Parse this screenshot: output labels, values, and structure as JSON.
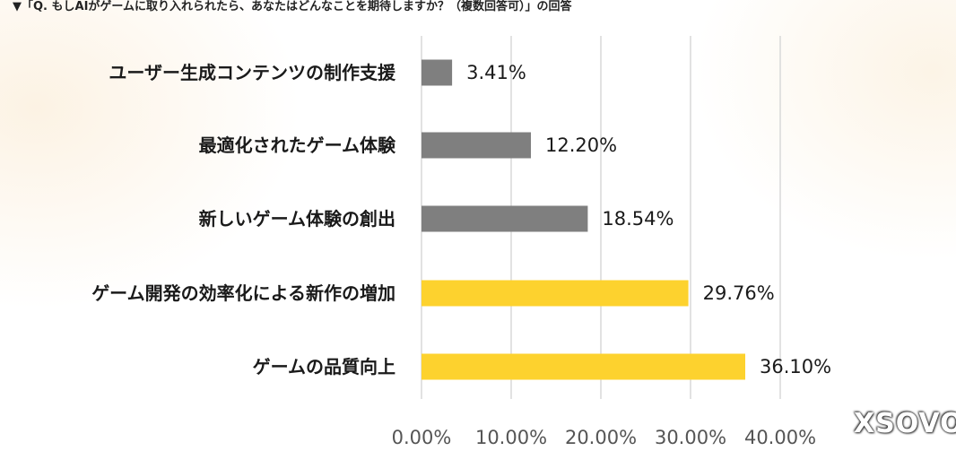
{
  "title": "▼「Q. もしAIがゲームに取り入れられたら、あなたはどんなことを期待しますか？（複数回答可）」の回答",
  "watermark": "XSOVO",
  "colors": {
    "gray": "#7f7f7f",
    "yellow": "#fdd22e",
    "grid": "#d9d9d9"
  },
  "chart_data": {
    "type": "bar",
    "orientation": "horizontal",
    "categories": [
      "ユーザー生成コンテンツの制作支援",
      "最適化されたゲーム体験",
      "新しいゲーム体験の創出",
      "ゲーム開発の効率化による新作の増加",
      "ゲームの品質向上"
    ],
    "values": [
      3.41,
      12.2,
      18.54,
      29.76,
      36.1
    ],
    "value_labels": [
      "3.41%",
      "12.20%",
      "18.54%",
      "29.76%",
      "36.10%"
    ],
    "bar_colors": [
      "#7f7f7f",
      "#7f7f7f",
      "#7f7f7f",
      "#fdd22e",
      "#fdd22e"
    ],
    "xlim": [
      0,
      40
    ],
    "x_ticks": [
      0,
      10,
      20,
      30,
      40
    ],
    "x_tick_labels": [
      "0.00%",
      "10.00%",
      "20.00%",
      "30.00%",
      "40.00%"
    ],
    "grid": true
  }
}
